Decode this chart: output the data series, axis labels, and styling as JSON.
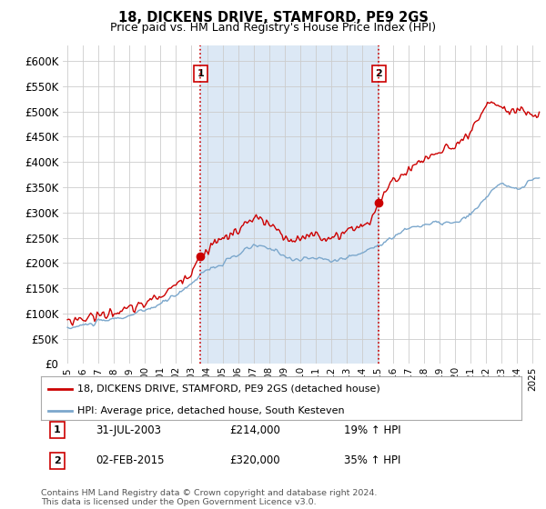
{
  "title": "18, DICKENS DRIVE, STAMFORD, PE9 2GS",
  "subtitle": "Price paid vs. HM Land Registry's House Price Index (HPI)",
  "ytick_values": [
    0,
    50000,
    100000,
    150000,
    200000,
    250000,
    300000,
    350000,
    400000,
    450000,
    500000,
    550000,
    600000
  ],
  "ylim": [
    0,
    630000
  ],
  "legend_line1": "18, DICKENS DRIVE, STAMFORD, PE9 2GS (detached house)",
  "legend_line2": "HPI: Average price, detached house, South Kesteven",
  "sale1_label": "1",
  "sale1_date": "31-JUL-2003",
  "sale1_price": "£214,000",
  "sale1_hpi": "19% ↑ HPI",
  "sale2_label": "2",
  "sale2_date": "02-FEB-2015",
  "sale2_price": "£320,000",
  "sale2_hpi": "35% ↑ HPI",
  "sale1_x": 2003.58,
  "sale1_y": 214000,
  "sale2_x": 2015.08,
  "sale2_y": 320000,
  "vline1_x": 2003.58,
  "vline2_x": 2015.08,
  "red_color": "#cc0000",
  "blue_color": "#7ba7cc",
  "shade_color": "#dce8f5",
  "vline_color": "#cc0000",
  "footer": "Contains HM Land Registry data © Crown copyright and database right 2024.\nThis data is licensed under the Open Government Licence v3.0.",
  "background_color": "#ffffff",
  "grid_color": "#cccccc",
  "xlim_left": 1994.7,
  "xlim_right": 2025.5
}
